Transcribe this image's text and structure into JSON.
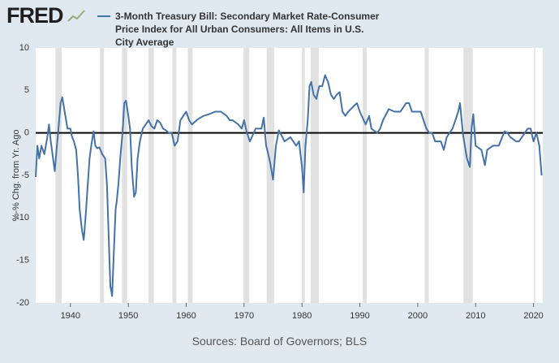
{
  "chart_data": {
    "type": "line",
    "logo": "FRED",
    "y_label": "%-% Chg. from Yr. Ago",
    "source": "Sources: Board of Governors; BLS",
    "ylim": [
      -20,
      10
    ],
    "yticks": [
      -20,
      -15,
      -10,
      -5,
      0,
      5,
      10
    ],
    "xlim": [
      1934,
      2021.6
    ],
    "xticks": [
      1940,
      1950,
      1960,
      1970,
      1980,
      1990,
      2000,
      2010,
      2020
    ],
    "grid": false,
    "recession_color": "#e1e1e1",
    "recessions": [
      [
        1937.4,
        1938.5
      ],
      [
        1945.1,
        1945.8
      ],
      [
        1948.9,
        1949.8
      ],
      [
        1953.5,
        1954.4
      ],
      [
        1957.6,
        1958.3
      ],
      [
        1960.3,
        1961.1
      ],
      [
        1969.9,
        1970.9
      ],
      [
        1973.9,
        1975.2
      ],
      [
        1980.0,
        1980.5
      ],
      [
        1981.5,
        1982.9
      ],
      [
        1990.5,
        1991.2
      ],
      [
        2001.2,
        2001.9
      ],
      [
        2007.9,
        2009.5
      ],
      [
        2020.1,
        2020.3
      ]
    ],
    "series": [
      {
        "name": "3-Month Treasury Bill: Secondary Market Rate-Consumer Price Index for All Urban Consumers: All Items in U.S. City Average",
        "color": "#4572a7",
        "x": [
          1934,
          1934.3,
          1934.6,
          1935,
          1935.5,
          1936,
          1936.3,
          1936.6,
          1937,
          1937.3,
          1937.6,
          1938,
          1938.3,
          1938.6,
          1939,
          1939.5,
          1940,
          1940.3,
          1940.6,
          1941,
          1941.3,
          1941.6,
          1942,
          1942.3,
          1942.6,
          1943,
          1943.3,
          1943.6,
          1944,
          1944.3,
          1944.6,
          1945,
          1945.5,
          1946,
          1946.3,
          1946.6,
          1946.9,
          1947.2,
          1947.5,
          1947.8,
          1948,
          1948.3,
          1948.6,
          1949,
          1949.3,
          1949.6,
          1950,
          1950.3,
          1950.6,
          1951,
          1951.3,
          1951.6,
          1952,
          1952.5,
          1953,
          1953.5,
          1954,
          1954.5,
          1955,
          1955.5,
          1956,
          1956.5,
          1957,
          1957.5,
          1958,
          1958.5,
          1959,
          1959.5,
          1960,
          1960.5,
          1961,
          1962,
          1963,
          1964,
          1965,
          1966,
          1967,
          1967.5,
          1968,
          1969,
          1969.6,
          1970,
          1970.5,
          1971,
          1972,
          1972.5,
          1973,
          1973.4,
          1973.8,
          1974,
          1974.5,
          1975,
          1975.5,
          1976,
          1977,
          1978,
          1979,
          1979.5,
          1980,
          1980.3,
          1980.6,
          1981,
          1981.3,
          1981.6,
          1982,
          1982.5,
          1982.8,
          1983,
          1983.5,
          1984,
          1984.5,
          1985,
          1985.5,
          1986,
          1986.5,
          1987,
          1987.5,
          1988,
          1989,
          1989.5,
          1990,
          1991,
          1991.6,
          1992,
          1993,
          1993.5,
          1994,
          1995,
          1996,
          1997,
          1998,
          1998.5,
          1999,
          2000,
          2000.5,
          2001,
          2001.5,
          2002,
          2002.5,
          2003,
          2004,
          2004.5,
          2005,
          2006,
          2006.5,
          2007,
          2007.3,
          2007.8,
          2008,
          2008.5,
          2009,
          2009.3,
          2009.6,
          2010,
          2011,
          2011.6,
          2012,
          2013,
          2014,
          2015,
          2015.5,
          2016,
          2017,
          2017.5,
          2018,
          2019,
          2019.5,
          2020,
          2020.5,
          2021,
          2021.4
        ],
        "values": [
          -5.2,
          -1.5,
          -3,
          -1.5,
          -2.5,
          -0.5,
          1,
          -1,
          -3,
          -4.5,
          -2,
          1,
          3.5,
          4.2,
          2.5,
          0.5,
          0.5,
          -0.5,
          -1,
          -2,
          -5,
          -9,
          -11.5,
          -12.6,
          -10,
          -6,
          -3,
          -1.5,
          0.2,
          -1.5,
          -1.8,
          -1.7,
          -2.5,
          -3,
          -6,
          -12,
          -18,
          -19.2,
          -14,
          -9,
          -8,
          -6,
          -3,
          0,
          3.5,
          3.8,
          2,
          0.5,
          -4,
          -7.5,
          -7,
          -3,
          -1,
          0.5,
          1,
          1.5,
          0.8,
          0.5,
          1.5,
          1.2,
          0.5,
          0.3,
          0,
          0,
          -1.5,
          -1,
          1.5,
          2,
          2.5,
          1.5,
          1,
          1.6,
          2,
          2.2,
          2.5,
          2.5,
          2,
          1.5,
          1.5,
          1,
          0.5,
          1.5,
          0,
          -1,
          0.5,
          0.5,
          0.5,
          1.8,
          -1.5,
          -2,
          -3.5,
          -5.5,
          -1.5,
          0.3,
          -1,
          -0.5,
          -1.5,
          -1,
          -4,
          -7,
          -1.5,
          1.5,
          5.5,
          6,
          4.5,
          4,
          5,
          5.5,
          5.5,
          6.8,
          6,
          4.5,
          4,
          4.5,
          4.8,
          2.5,
          2,
          2.5,
          3.2,
          3.5,
          2.5,
          1,
          2,
          0.5,
          0,
          0.5,
          1.5,
          2.8,
          2.5,
          2.5,
          3.5,
          3.5,
          2.5,
          2.5,
          2.5,
          1.5,
          0.5,
          0,
          0,
          -1,
          -1,
          -2,
          -0.5,
          0.5,
          1.5,
          2.5,
          3.5,
          0,
          -1,
          -3,
          -4,
          0.5,
          2.2,
          -1.5,
          -2,
          -3.8,
          -2,
          -1.5,
          -1.5,
          0.2,
          0,
          -0.5,
          -1,
          -1,
          -0.5,
          0.5,
          0.5,
          -1,
          0,
          -1.5,
          -5
        ]
      }
    ]
  }
}
